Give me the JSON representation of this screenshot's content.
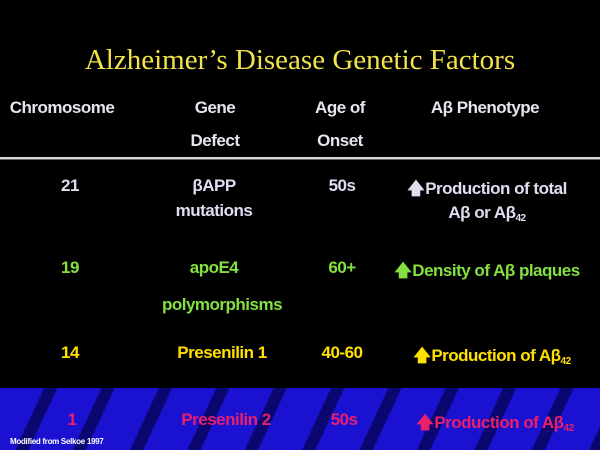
{
  "title": "Alzheimer’s Disease Genetic Factors",
  "headers": {
    "chromosome": "Chromosome",
    "gene_1": "Gene",
    "gene_2": "Defect",
    "age_1": "Age of",
    "age_2": "Onset",
    "phenotype": "Aβ Phenotype"
  },
  "rows": [
    {
      "chromosome": "21",
      "gene_1": "βAPP",
      "gene_2": "mutations",
      "age": "50s",
      "phenotype_1": "Production of total",
      "phenotype_2": "Aβ  or Aβ",
      "phenotype_sub": "42",
      "color": "#e2dcf0"
    },
    {
      "chromosome": "19",
      "gene_1": "apoE4",
      "gene_2": "polymorphisms",
      "age": "60+",
      "phenotype_1": "Density of Aβ plaques",
      "color": "#84e040"
    },
    {
      "chromosome": "14",
      "gene_1": "Presenilin 1",
      "age": "40-60",
      "phenotype_1": "Production of Aβ",
      "phenotype_sub": "42",
      "color": "#ffe000"
    },
    {
      "chromosome": "1",
      "gene_1": "Presenilin 2",
      "age": "50s",
      "phenotype_1": "Production of Aβ",
      "phenotype_sub": "42",
      "color": "#e8206c"
    }
  ],
  "up_arrow_icon": "up-arrow-icon",
  "footnote": "Modified from Selkoe 1997"
}
